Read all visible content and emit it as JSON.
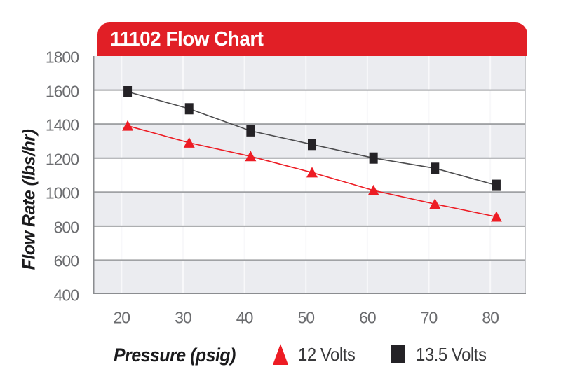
{
  "header": {
    "title": "11102 Flow Chart",
    "bg_color": "#e11f26",
    "text_color": "#ffffff"
  },
  "chart_data": {
    "type": "line",
    "title": "11102 Flow Chart",
    "xlabel": "Pressure (psig)",
    "ylabel": "Flow Rate (lbs/hr)",
    "x": [
      21,
      31,
      41,
      51,
      61,
      71,
      81
    ],
    "series": [
      {
        "name": "12 Volts",
        "marker": "triangle",
        "color": "#ed1c24",
        "line_color": "#ed1c24",
        "values": [
          1390,
          1290,
          1210,
          1115,
          1010,
          930,
          855
        ]
      },
      {
        "name": "13.5 Volts",
        "marker": "square",
        "color": "#242226",
        "line_color": "#4c4c4e",
        "values": [
          1590,
          1490,
          1360,
          1280,
          1200,
          1140,
          1040
        ]
      }
    ],
    "x_ticks": [
      20,
      30,
      40,
      50,
      60,
      70,
      80
    ],
    "y_ticks": [
      400,
      600,
      800,
      1000,
      1200,
      1400,
      1600,
      1800
    ],
    "xlim": [
      15.4,
      85.8
    ],
    "ylim": [
      400,
      1800
    ],
    "legend_position": "bottom",
    "grid": "horizontal-bands",
    "band_colors": [
      "#ebecf0",
      "#ffffff"
    ],
    "gridline_color": "#a0a2a5",
    "vgrid_color": "#f8f8fa",
    "axis_line_color": "#8b8d90",
    "plot_right_border_color": "#c9cacd",
    "tick_label_color": "#6b6c6f"
  }
}
